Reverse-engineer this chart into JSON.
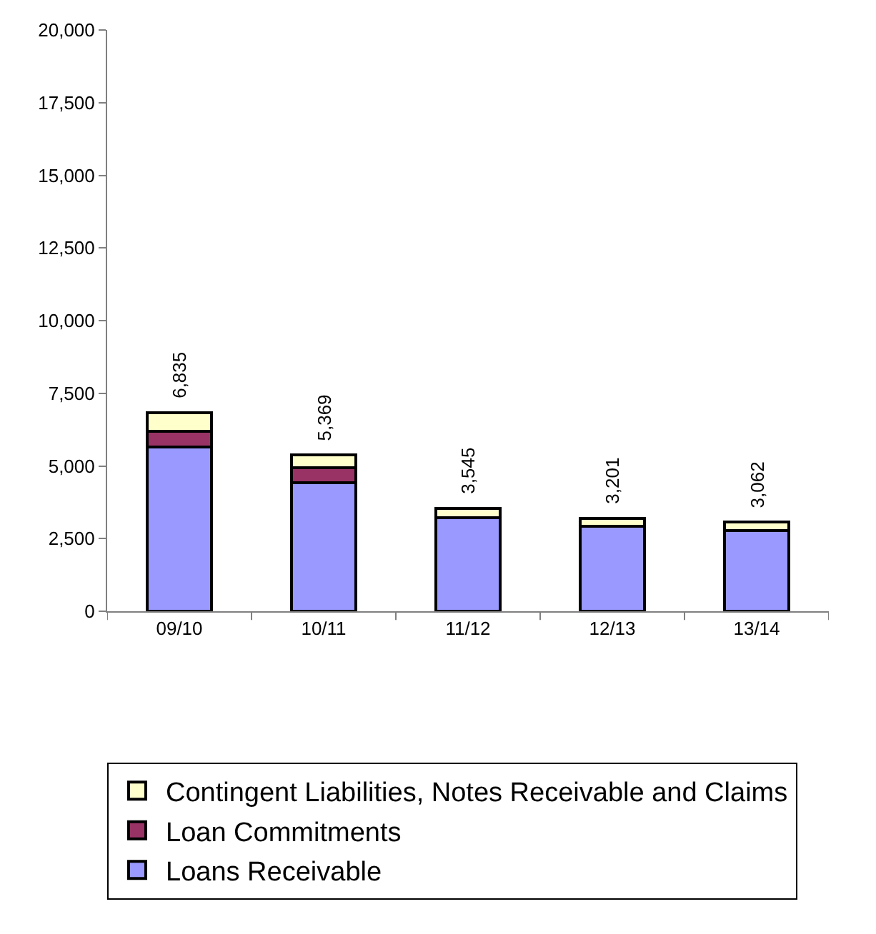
{
  "chart_data": {
    "type": "bar",
    "stacked": true,
    "categories": [
      "09/10",
      "10/11",
      "11/12",
      "12/13",
      "13/14"
    ],
    "series": [
      {
        "name": "Loans Receivable",
        "color": "#9999ff",
        "values": [
          5650,
          4430,
          3230,
          2930,
          2780
        ]
      },
      {
        "name": "Loan Commitments",
        "color": "#993366",
        "values": [
          550,
          520,
          0,
          0,
          0
        ]
      },
      {
        "name": "Contingent Liabilities, Notes Receivable and Claims",
        "color": "#ffffcc",
        "values": [
          635,
          419,
          315,
          271,
          282
        ]
      }
    ],
    "totals": [
      "6,835",
      "5,369",
      "3,545",
      "3,201",
      "3,062"
    ],
    "ylim": [
      0,
      20000
    ],
    "yticks": [
      {
        "value": 0,
        "label": "0"
      },
      {
        "value": 2500,
        "label": "2,500"
      },
      {
        "value": 5000,
        "label": "5,000"
      },
      {
        "value": 7500,
        "label": "7,500"
      },
      {
        "value": 10000,
        "label": "10,000"
      },
      {
        "value": 12500,
        "label": "12,500"
      },
      {
        "value": 15000,
        "label": "15,000"
      },
      {
        "value": 17500,
        "label": "17,500"
      },
      {
        "value": 20000,
        "label": "20,000"
      }
    ],
    "legend": "bottom"
  }
}
